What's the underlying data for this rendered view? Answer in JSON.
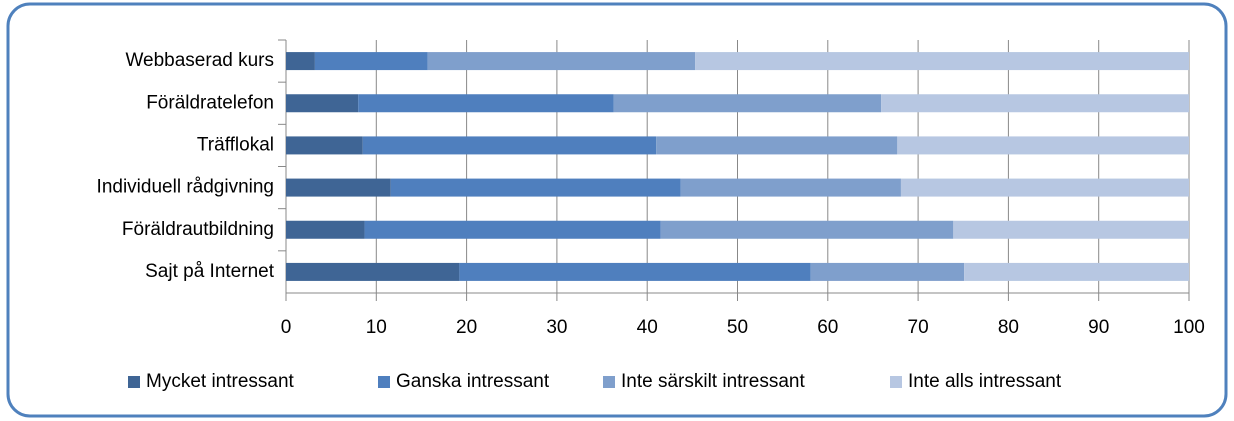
{
  "chart_data": {
    "type": "stacked_barh",
    "categories": [
      "Webbaserad kurs",
      "Föräldratelefon",
      "Träfflokal",
      "Individuell rådgivning",
      "Föräldrautbildning",
      "Sajt på Internet"
    ],
    "series": [
      {
        "name": "Mycket intressant",
        "color": "#3f6595",
        "values": [
          3.2,
          8.0,
          8.5,
          11.6,
          8.7,
          19.2
        ]
      },
      {
        "name": "Ganska intressant",
        "color": "#4f7fbe",
        "values": [
          12.5,
          28.3,
          32.5,
          32.1,
          32.8,
          38.9
        ]
      },
      {
        "name": "Inte särskilt intressant",
        "color": "#7f9fcc",
        "values": [
          29.6,
          29.6,
          26.7,
          24.4,
          32.4,
          17.0
        ]
      },
      {
        "name": "Inte alls intressant",
        "color": "#b7c7e2",
        "values": [
          54.7,
          34.1,
          32.3,
          31.9,
          26.1,
          24.9
        ]
      }
    ],
    "xlim": [
      0,
      100
    ],
    "xticks": [
      0,
      10,
      20,
      30,
      40,
      50,
      60,
      70,
      80,
      90,
      100
    ],
    "grid": true,
    "legend": "bottom"
  }
}
